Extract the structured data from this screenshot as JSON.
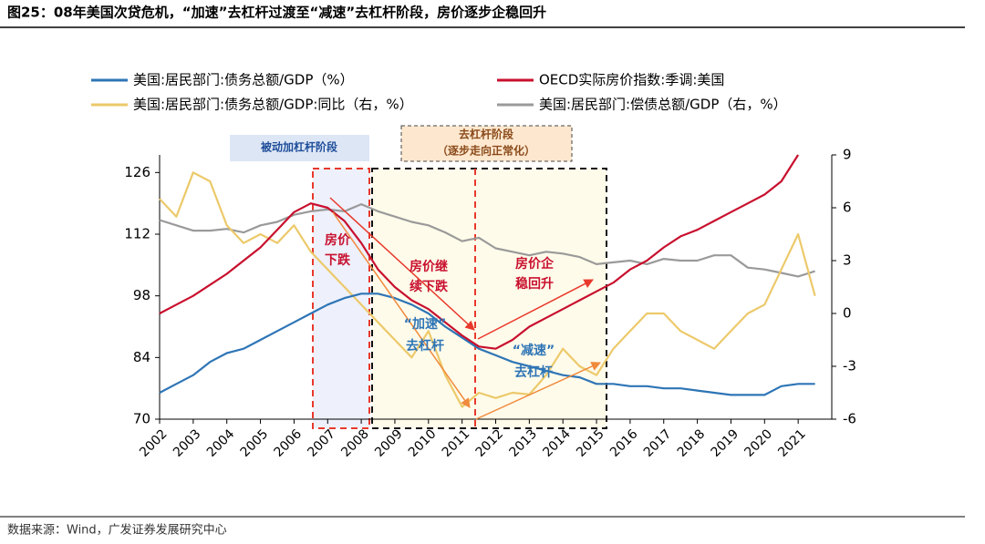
{
  "chart_data": {
    "type": "line",
    "title": "图25：08年美国次贷危机，“加速”去杠杆过渡至“减速”去杠杆阶段，房价逐步企稳回升",
    "source": "数据来源：Wind，广发证券发展研究中心",
    "x": [
      2002,
      2002.5,
      2003,
      2003.5,
      2004,
      2004.5,
      2005,
      2005.5,
      2006,
      2006.5,
      2007,
      2007.5,
      2008,
      2008.5,
      2009,
      2009.5,
      2010,
      2010.5,
      2011,
      2011.5,
      2012,
      2012.5,
      2013,
      2013.5,
      2014,
      2014.5,
      2015,
      2015.5,
      2016,
      2016.5,
      2017,
      2017.5,
      2018,
      2018.5,
      2019,
      2019.5,
      2020,
      2020.5,
      2021,
      2021.5
    ],
    "xlim": [
      2002,
      2022
    ],
    "xticks": [
      2002,
      2003,
      2004,
      2005,
      2006,
      2007,
      2008,
      2009,
      2010,
      2011,
      2012,
      2013,
      2014,
      2015,
      2016,
      2017,
      2018,
      2019,
      2020,
      2021
    ],
    "ylim": [
      70,
      130
    ],
    "yticks": [
      70,
      84,
      98,
      112,
      126
    ],
    "y2lim": [
      -6,
      9
    ],
    "y2ticks": [
      -6,
      -3,
      0,
      3,
      6,
      9
    ],
    "series": [
      {
        "name": "美国:居民部门:债务总额/GDP（%）",
        "color": "#2e75b6",
        "values": [
          76,
          78,
          80,
          83,
          85,
          86,
          88,
          90,
          92,
          94,
          96,
          97.5,
          98.5,
          98.5,
          97.5,
          96,
          94,
          91,
          88.5,
          86,
          84.5,
          83,
          82,
          81,
          80,
          79.5,
          78,
          78,
          77.5,
          77.5,
          77,
          77,
          76.5,
          76,
          75.5,
          75.5,
          75.5,
          77.5,
          78,
          78
        ]
      },
      {
        "name": "OECD实际房价指数:季调:美国",
        "color": "#c8102e",
        "values": [
          94,
          96,
          98,
          100.5,
          103,
          106,
          109,
          113,
          117,
          119,
          118,
          115,
          110,
          104,
          100,
          97,
          95,
          92,
          89,
          86.5,
          86,
          88,
          91,
          93,
          95,
          97,
          99,
          101,
          104,
          106,
          109,
          111.5,
          113,
          115,
          117,
          119,
          121,
          124,
          130,
          null
        ]
      },
      {
        "name": "美国:居民部门:债务总额/GDP:同比（右，%）",
        "color": "#ecc96a",
        "axis": "y2",
        "values": [
          6.5,
          5.5,
          8,
          7.5,
          5,
          4,
          4.5,
          4,
          5,
          3.5,
          2.5,
          1.5,
          0.5,
          -0.5,
          -1.5,
          -2.5,
          -1,
          -3.5,
          -5.3,
          -4.5,
          -4.8,
          -4.5,
          -4.6,
          -3.5,
          -2,
          -3,
          -3.5,
          -2,
          -1,
          0,
          0,
          -1,
          -1.5,
          -2,
          -1,
          0,
          0.5,
          2.5,
          4.5,
          1
        ]
      },
      {
        "name": "美国:居民部门:偿债总额/GDP（右，%）",
        "color": "#9a9a9a",
        "axis": "y2",
        "values": [
          5.3,
          5,
          4.7,
          4.7,
          4.8,
          4.6,
          5,
          5.2,
          5.6,
          5.8,
          5.9,
          5.8,
          6.2,
          5.8,
          5.5,
          5.2,
          5,
          4.6,
          4.1,
          4.3,
          3.7,
          3.5,
          3.3,
          3.5,
          3.4,
          3.2,
          2.8,
          2.9,
          3,
          2.8,
          3.1,
          3,
          3,
          3.3,
          3.3,
          2.6,
          2.5,
          2.3,
          2.1,
          2.4
        ]
      }
    ],
    "annotations": [
      "被动加杠杆阶段",
      "去杠杆阶段",
      "（逐步走向正常化）",
      "房价",
      "下跌",
      "房价继",
      "续下跌",
      "房价企",
      "稳回升",
      "“加速”",
      "去杠杆",
      "“减速”",
      "去杠杆"
    ]
  }
}
